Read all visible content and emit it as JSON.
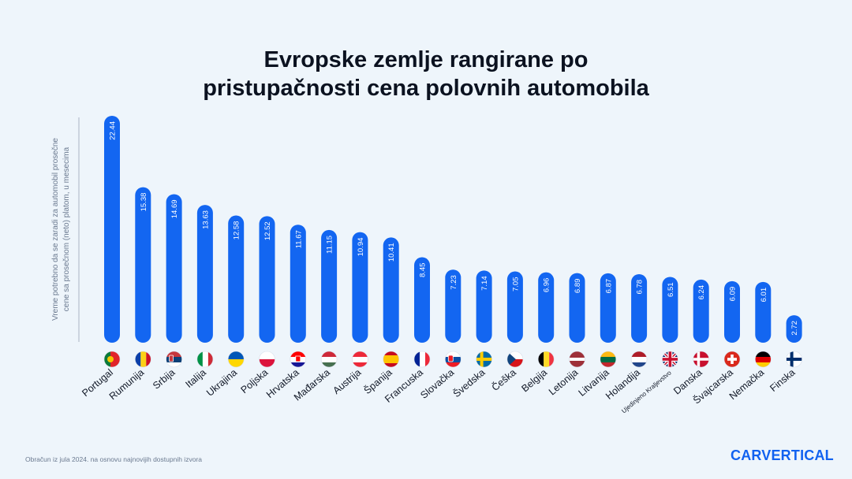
{
  "chart_data": {
    "type": "bar",
    "title_line1": "Evropske zemlje rangirane po",
    "title_line2": "pristupačnosti cena polovnih automobila",
    "ylabel_line1": "Vreme potrebno da se zaradi za automobil prosečne",
    "ylabel_line2": "cene sa prosečnom (neto) platom, u mesecima",
    "categories": [
      "Portugal",
      "Rumunija",
      "Srbija",
      "Italija",
      "Ukrajina",
      "Poljska",
      "Hrvatska",
      "Mađarska",
      "Austrija",
      "Španija",
      "Francuska",
      "Slovačka",
      "Švedska",
      "Češka",
      "Belgija",
      "Letonija",
      "Litvanija",
      "Holandija",
      "Ujedinjeno Kraljevstvo",
      "Danska",
      "Švajcarska",
      "Nemačka",
      "Finska"
    ],
    "values": [
      22.44,
      15.38,
      14.69,
      13.63,
      12.58,
      12.52,
      11.67,
      11.15,
      10.94,
      10.41,
      8.45,
      7.23,
      7.14,
      7.05,
      6.96,
      6.89,
      6.87,
      6.78,
      6.51,
      6.24,
      6.09,
      6.01,
      2.72
    ],
    "value_labels": [
      "22.44",
      "15.38",
      "14.69",
      "13.63",
      "12.58",
      "12.52",
      "11.67",
      "11.15",
      "10.94",
      "10.41",
      "8.45",
      "7.23",
      "7.14",
      "7.05",
      "6.96",
      "6.89",
      "6.87",
      "6.78",
      "6.51",
      "6.24",
      "6.09",
      "6.01",
      "2.72"
    ],
    "ylim": [
      0,
      22.44
    ],
    "flags": [
      "portugal-flag",
      "romania-flag",
      "serbia-flag",
      "italy-flag",
      "ukraine-flag",
      "poland-flag",
      "croatia-flag",
      "hungary-flag",
      "austria-flag",
      "spain-flag",
      "france-flag",
      "slovakia-flag",
      "sweden-flag",
      "czechia-flag",
      "belgium-flag",
      "latvia-flag",
      "lithuania-flag",
      "netherlands-flag",
      "uk-flag",
      "denmark-flag",
      "switzerland-flag",
      "germany-flag",
      "finland-flag"
    ],
    "grid": false,
    "legend": "none",
    "bar_color": "#1366f1"
  },
  "footnote": "Obračun iz jula 2024. na osnovu najnovijih dostupnih izvora",
  "brand": "CARVERTICAL"
}
